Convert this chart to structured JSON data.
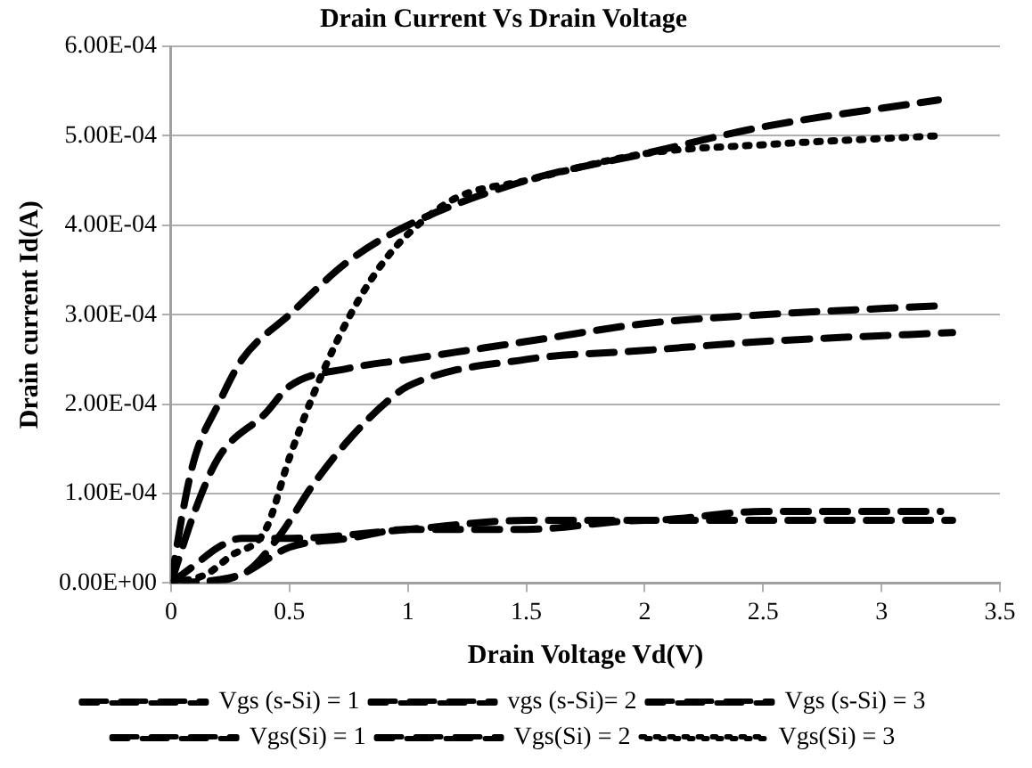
{
  "chart_data": {
    "type": "line",
    "title": "Drain Current Vs Drain Voltage",
    "xlabel": "Drain Voltage Vd(V)",
    "ylabel": "Drain current Id(A)",
    "xlim": [
      0,
      3.5
    ],
    "xticks": [
      0,
      0.5,
      1,
      1.5,
      2,
      2.5,
      3,
      3.5
    ],
    "ylim": [
      0,
      0.0006
    ],
    "yticks": [
      {
        "value": 0,
        "label": "0.00E+00"
      },
      {
        "value": 0.0001,
        "label": "1.00E-04"
      },
      {
        "value": 0.0002,
        "label": "2.00E-04"
      },
      {
        "value": 0.0003,
        "label": "3.00E-04"
      },
      {
        "value": 0.0004,
        "label": "4.00E-04"
      },
      {
        "value": 0.0005,
        "label": "5.00E-04"
      },
      {
        "value": 0.0006,
        "label": "6.00E-04"
      }
    ],
    "grid": "y",
    "legend": "bottom",
    "marker": "none",
    "series": [
      {
        "name": "Vgs (s-Si) = 1",
        "color": "#000000",
        "line_style": "dashed",
        "x": [
          0,
          0.1,
          0.2,
          0.3,
          0.5,
          1,
          1.5,
          2,
          2.5,
          3,
          3.25
        ],
        "values": [
          0,
          2e-05,
          4e-05,
          5e-05,
          5e-05,
          6e-05,
          7e-05,
          7e-05,
          8e-05,
          8e-05,
          8e-05
        ]
      },
      {
        "name": "vgs (s-Si)= 2",
        "color": "#000000",
        "line_style": "dashed",
        "x": [
          0,
          0.1,
          0.2,
          0.4,
          0.5,
          0.75,
          1,
          1.5,
          2,
          2.5,
          3.25
        ],
        "values": [
          0,
          8e-05,
          0.00014,
          0.00019,
          0.00022,
          0.00024,
          0.00025,
          0.00027,
          0.00029,
          0.0003,
          0.00031
        ]
      },
      {
        "name": "Vgs (s-Si) = 3",
        "color": "#000000",
        "line_style": "dashed",
        "x": [
          0,
          0.05,
          0.1,
          0.2,
          0.3,
          0.5,
          0.75,
          1,
          1.5,
          2,
          2.5,
          3.24
        ],
        "values": [
          0,
          8e-05,
          0.00014,
          0.0002,
          0.00025,
          0.0003,
          0.00036,
          0.0004,
          0.00045,
          0.00048,
          0.00051,
          0.00054
        ]
      },
      {
        "name": "Vgs(Si) = 1",
        "color": "#000000",
        "line_style": "dashed",
        "x": [
          0,
          0.15,
          0.3,
          0.5,
          0.75,
          1,
          1.5,
          2,
          2.5,
          3.3
        ],
        "values": [
          0,
          0,
          1e-05,
          4e-05,
          5e-05,
          6e-05,
          6e-05,
          7e-05,
          7e-05,
          7e-05
        ]
      },
      {
        "name": "Vgs(Si) = 2",
        "color": "#000000",
        "line_style": "dashed",
        "x": [
          0,
          0.3,
          0.45,
          0.6,
          0.75,
          0.9,
          1,
          1.5,
          2,
          2.5,
          3.3
        ],
        "values": [
          0,
          1e-05,
          5e-05,
          0.00011,
          0.00016,
          0.0002,
          0.00022,
          0.00025,
          0.00026,
          0.00027,
          0.00028
        ]
      },
      {
        "name": "Vgs(Si) = 3",
        "color": "#000000",
        "line_style": "dotted",
        "x": [
          0,
          0.15,
          0.25,
          0.4,
          0.5,
          0.6,
          0.7,
          0.8,
          0.9,
          1,
          1.2,
          1.5,
          2,
          2.5,
          3.24
        ],
        "values": [
          0,
          1e-05,
          3e-05,
          6e-05,
          0.00014,
          0.00021,
          0.00027,
          0.00032,
          0.00036,
          0.00039,
          0.00043,
          0.00045,
          0.00048,
          0.00049,
          0.0005
        ]
      }
    ]
  }
}
